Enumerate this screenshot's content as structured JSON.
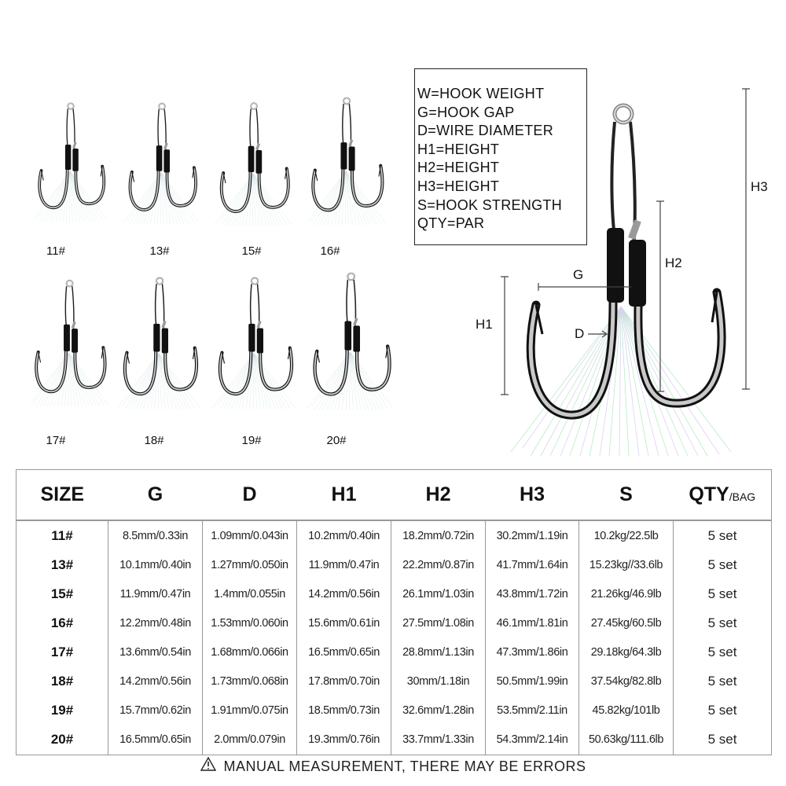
{
  "hook_sizes": {
    "row1": [
      "11#",
      "13#",
      "15#",
      "16#"
    ],
    "row2": [
      "17#",
      "18#",
      "19#",
      "20#"
    ]
  },
  "legend": [
    "W=HOOK WEIGHT",
    "G=HOOK GAP",
    "D=WIRE DIAMETER",
    "H1=HEIGHT",
    "H2=HEIGHT",
    "H3=HEIGHT",
    "S=HOOK STRENGTH",
    "QTY=PAR"
  ],
  "diagram_labels": {
    "g": "G",
    "d": "D",
    "h1": "H1",
    "h2": "H2",
    "h3": "H3"
  },
  "table": {
    "headers": [
      "SIZE",
      "G",
      "D",
      "H1",
      "H2",
      "H3",
      "S",
      "QTY"
    ],
    "qty_suffix": "/BAG",
    "rows": [
      [
        "11#",
        "8.5mm/0.33in",
        "1.09mm/0.043in",
        "10.2mm/0.40in",
        "18.2mm/0.72in",
        "30.2mm/1.19in",
        "10.2kg/22.5lb",
        "5 set"
      ],
      [
        "13#",
        "10.1mm/0.40in",
        "1.27mm/0.050in",
        "11.9mm/0.47in",
        "22.2mm/0.87in",
        "41.7mm/1.64in",
        "15.23kg//33.6lb",
        "5 set"
      ],
      [
        "15#",
        "11.9mm/0.47in",
        "1.4mm/0.055in",
        "14.2mm/0.56in",
        "26.1mm/1.03in",
        "43.8mm/1.72in",
        "21.26kg/46.9lb",
        "5 set"
      ],
      [
        "16#",
        "12.2mm/0.48in",
        "1.53mm/0.060in",
        "15.6mm/0.61in",
        "27.5mm/1.08in",
        "46.1mm/1.81in",
        "27.45kg/60.5lb",
        "5 set"
      ],
      [
        "17#",
        "13.6mm/0.54in",
        "1.68mm/0.066in",
        "16.5mm/0.65in",
        "28.8mm/1.13in",
        "47.3mm/1.86in",
        "29.18kg/64.3lb",
        "5 set"
      ],
      [
        "18#",
        "14.2mm/0.56in",
        "1.73mm/0.068in",
        "17.8mm/0.70in",
        "30mm/1.18in",
        "50.5mm/1.99in",
        "37.54kg/82.8lb",
        "5 set"
      ],
      [
        "19#",
        "15.7mm/0.62in",
        "1.91mm/0.075in",
        "18.5mm/0.73in",
        "32.6mm/1.28in",
        "53.5mm/2.11in",
        "45.82kg/101lb",
        "5 set"
      ],
      [
        "20#",
        "16.5mm/0.65in",
        "2.0mm/0.079in",
        "19.3mm/0.76in",
        "33.7mm/1.33in",
        "54.3mm/2.14in",
        "50.63kg/111.6lb",
        "5 set"
      ]
    ]
  },
  "note": "MANUAL MEASUREMENT, THERE MAY BE ERRORS",
  "icons": {
    "note": "warning-triangle-icon"
  },
  "colors": {
    "text": "#111111",
    "grid": "#999999",
    "tinsel": "#9fe0b4",
    "hook": "#1a1a1a"
  }
}
